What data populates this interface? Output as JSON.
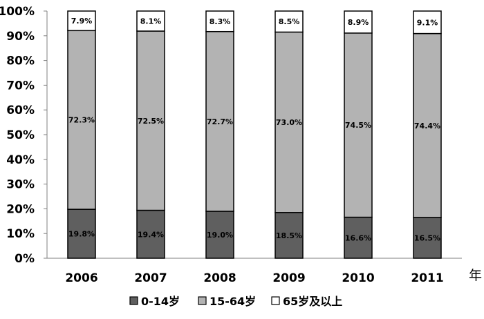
{
  "chart_data": {
    "type": "bar",
    "stacked": true,
    "categories": [
      "2006",
      "2007",
      "2008",
      "2009",
      "2010",
      "2011"
    ],
    "series": [
      {
        "name": "0-14岁",
        "values": [
          19.8,
          19.4,
          19.0,
          18.5,
          16.6,
          16.5
        ],
        "labels": [
          "19.8%",
          "19.4%",
          "19.0%",
          "18.5%",
          "16.6%",
          "16.5%"
        ],
        "color": "#5f5f5f"
      },
      {
        "name": "15-64岁",
        "values": [
          72.3,
          72.5,
          72.7,
          73.0,
          74.5,
          74.4
        ],
        "labels": [
          "72.3%",
          "72.5%",
          "72.7%",
          "73.0%",
          "74.5%",
          "74.4%"
        ],
        "color": "#b3b3b3"
      },
      {
        "name": "65岁及以上",
        "values": [
          7.9,
          8.1,
          8.3,
          8.5,
          8.9,
          9.1
        ],
        "labels": [
          "7.9%",
          "8.1%",
          "8.3%",
          "8.5%",
          "8.9%",
          "9.1%"
        ],
        "color": "#ffffff"
      }
    ],
    "yticks": [
      "0%",
      "10%",
      "20%",
      "30%",
      "40%",
      "50%",
      "60%",
      "70%",
      "80%",
      "90%",
      "100%"
    ],
    "ylim": [
      0,
      100
    ],
    "xunit": "年",
    "legend_position": "bottom",
    "grid": false
  }
}
